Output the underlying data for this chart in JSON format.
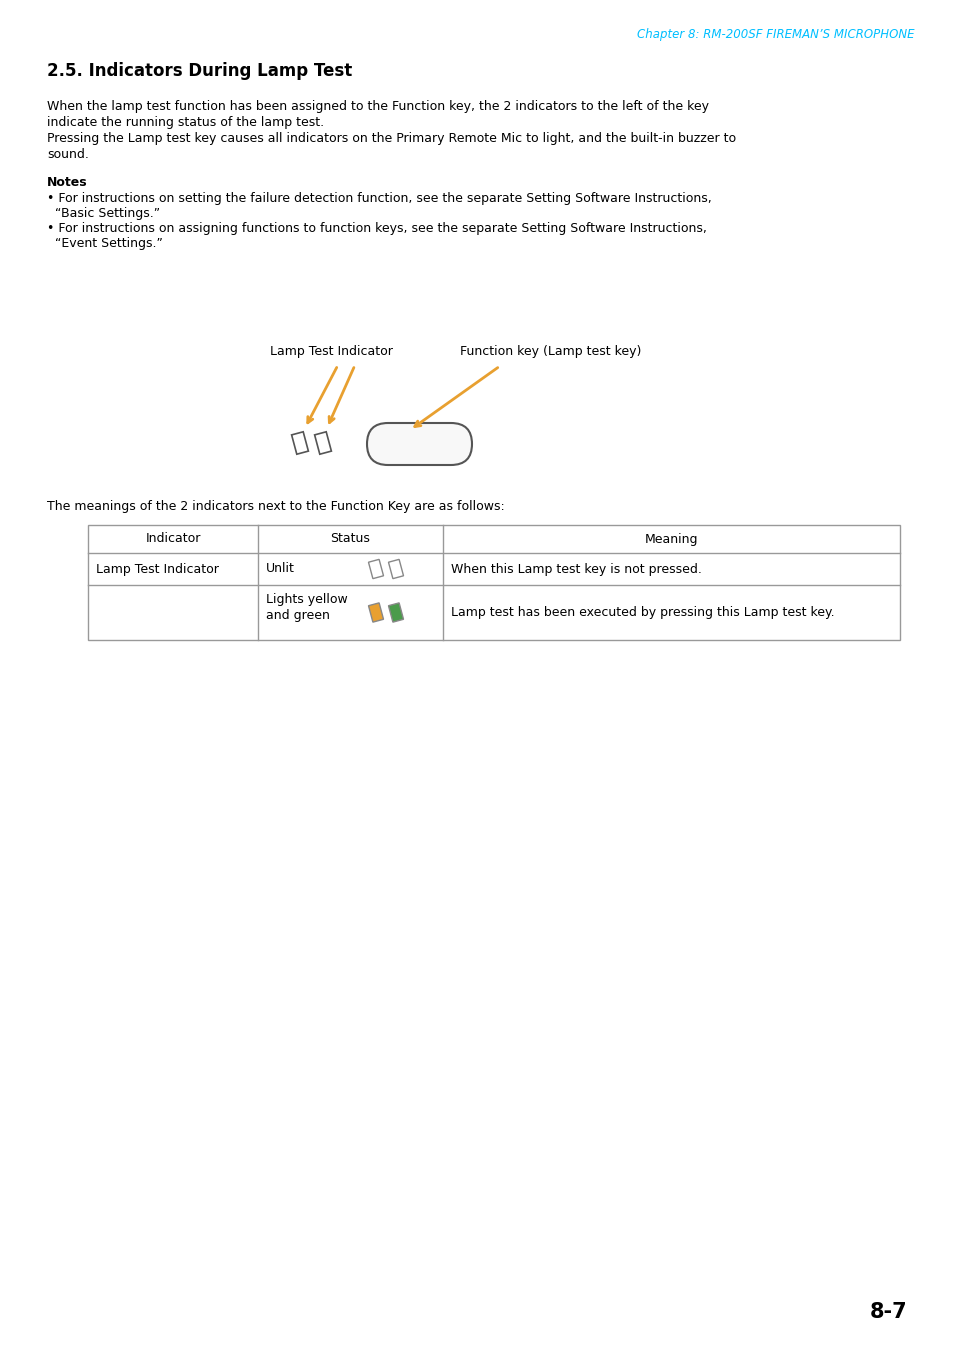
{
  "page_header": "Chapter 8: RM-200SF FIREMAN’S MICROPHONE",
  "header_color": "#00BFFF",
  "section_title": "2.5. Indicators During Lamp Test",
  "para1_lines": [
    "When the lamp test function has been assigned to the Function key, the 2 indicators to the left of the key",
    "indicate the running status of the lamp test.",
    "Pressing the Lamp test key causes all indicators on the Primary Remote Mic to light, and the built-in buzzer to",
    "sound."
  ],
  "notes_title": "Notes",
  "note1_lines": [
    "• For instructions on setting the failure detection function, see the separate Setting Software Instructions,",
    "  “Basic Settings.”"
  ],
  "note2_lines": [
    "• For instructions on assigning functions to function keys, see the separate Setting Software Instructions,",
    "  “Event Settings.”"
  ],
  "diagram_label_left": "Lamp Test Indicator",
  "diagram_label_right": "Function key (Lamp test key)",
  "table_intro": "The meanings of the 2 indicators next to the Function Key are as follows:",
  "table_headers": [
    "Indicator",
    "Status",
    "Meaning"
  ],
  "table_row1_col1": "Lamp Test Indicator",
  "table_row1_col2": "Unlit",
  "table_row1_col3": "When this Lamp test key is not pressed.",
  "table_row2_col2a": "Lights yellow",
  "table_row2_col2b": "and green",
  "table_row2_col3": "Lamp test has been executed by pressing this Lamp test key.",
  "page_number": "8-7",
  "bg_color": "#ffffff",
  "text_color": "#000000",
  "table_border_color": "#999999",
  "indicator_unlit_color": "#ffffff",
  "indicator_yellow_color": "#E8A030",
  "indicator_green_color": "#4A9B4A",
  "indicator_outline_color": "#888888",
  "arrow_color": "#E8A030"
}
